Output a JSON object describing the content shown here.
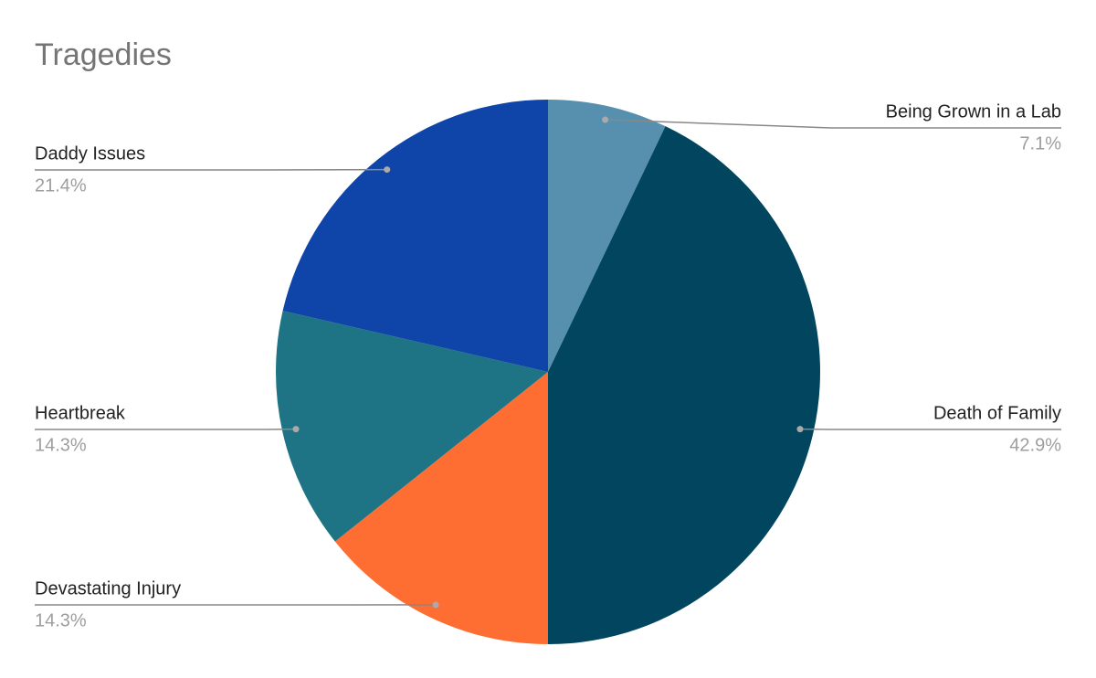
{
  "chart_data": {
    "type": "pie",
    "title": "Tragedies",
    "categories": [
      "Being Grown in a Lab",
      "Death of Family",
      "Devastating Injury",
      "Heartbreak",
      "Daddy Issues"
    ],
    "values": [
      7.1,
      42.9,
      14.3,
      14.3,
      21.4
    ],
    "value_labels": [
      "7.1%",
      "42.9%",
      "14.3%",
      "14.3%",
      "21.4%"
    ],
    "colors": [
      "#5790ae",
      "#01455f",
      "#fe6e33",
      "#1e7484",
      "#0f45a8"
    ]
  }
}
